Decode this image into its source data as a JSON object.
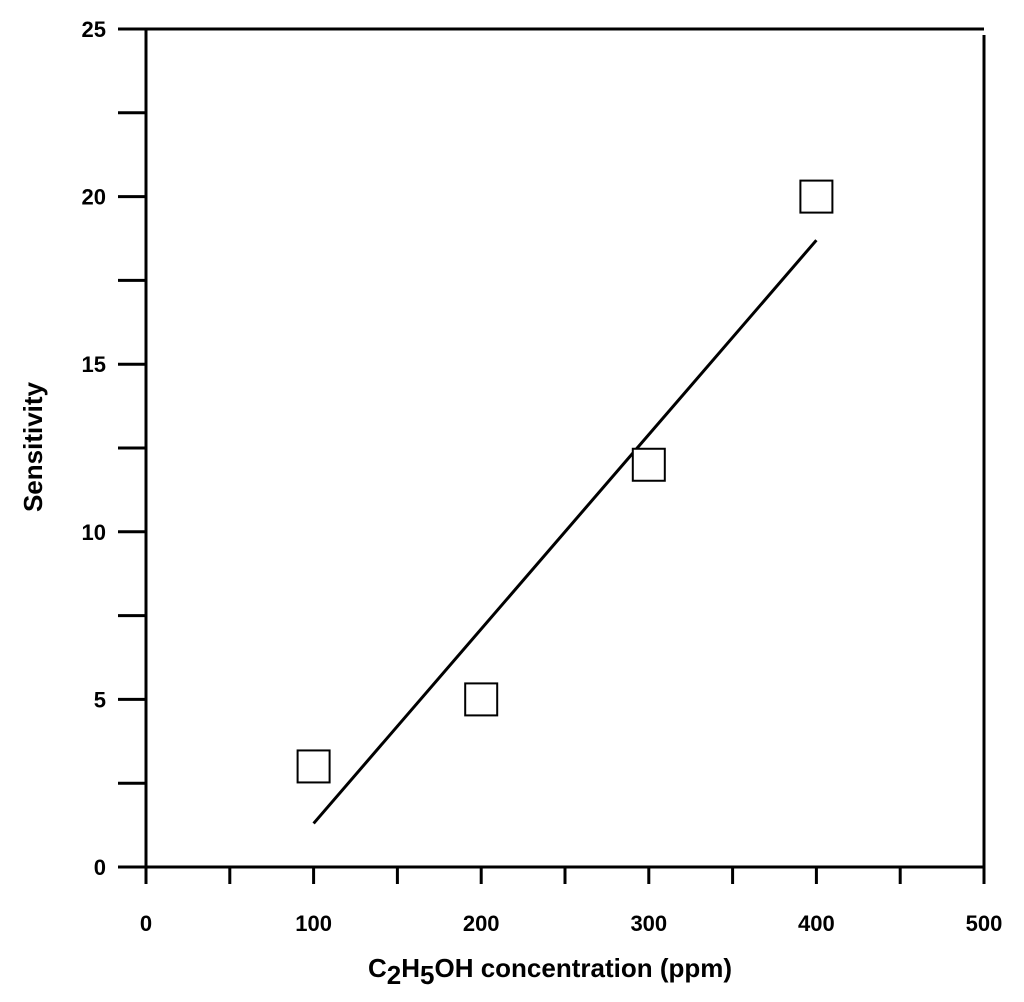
{
  "chart_data": {
    "type": "scatter",
    "xlabel": "C2H5OH concentration (ppm)",
    "xlabel_parts": [
      {
        "text": "C",
        "sub": false
      },
      {
        "text": "2",
        "sub": true
      },
      {
        "text": "H",
        "sub": false
      },
      {
        "text": "5",
        "sub": true
      },
      {
        "text": "OH concentration (ppm)",
        "sub": false
      }
    ],
    "ylabel": "Sensitivity",
    "xlim": [
      0,
      500
    ],
    "ylim": [
      0,
      25
    ],
    "x_ticks": [
      0,
      100,
      200,
      300,
      400,
      500
    ],
    "y_ticks": [
      0,
      5,
      10,
      15,
      20,
      25
    ],
    "x_minor_step": 50,
    "y_minor_step": 2.5,
    "grid": false,
    "marker": "open-square",
    "series": [
      {
        "x": [
          100,
          200,
          300,
          400
        ],
        "y": [
          3,
          5,
          12,
          20
        ]
      }
    ],
    "fit_line": {
      "x": [
        100,
        400
      ],
      "y": [
        1.3,
        18.7
      ]
    }
  }
}
